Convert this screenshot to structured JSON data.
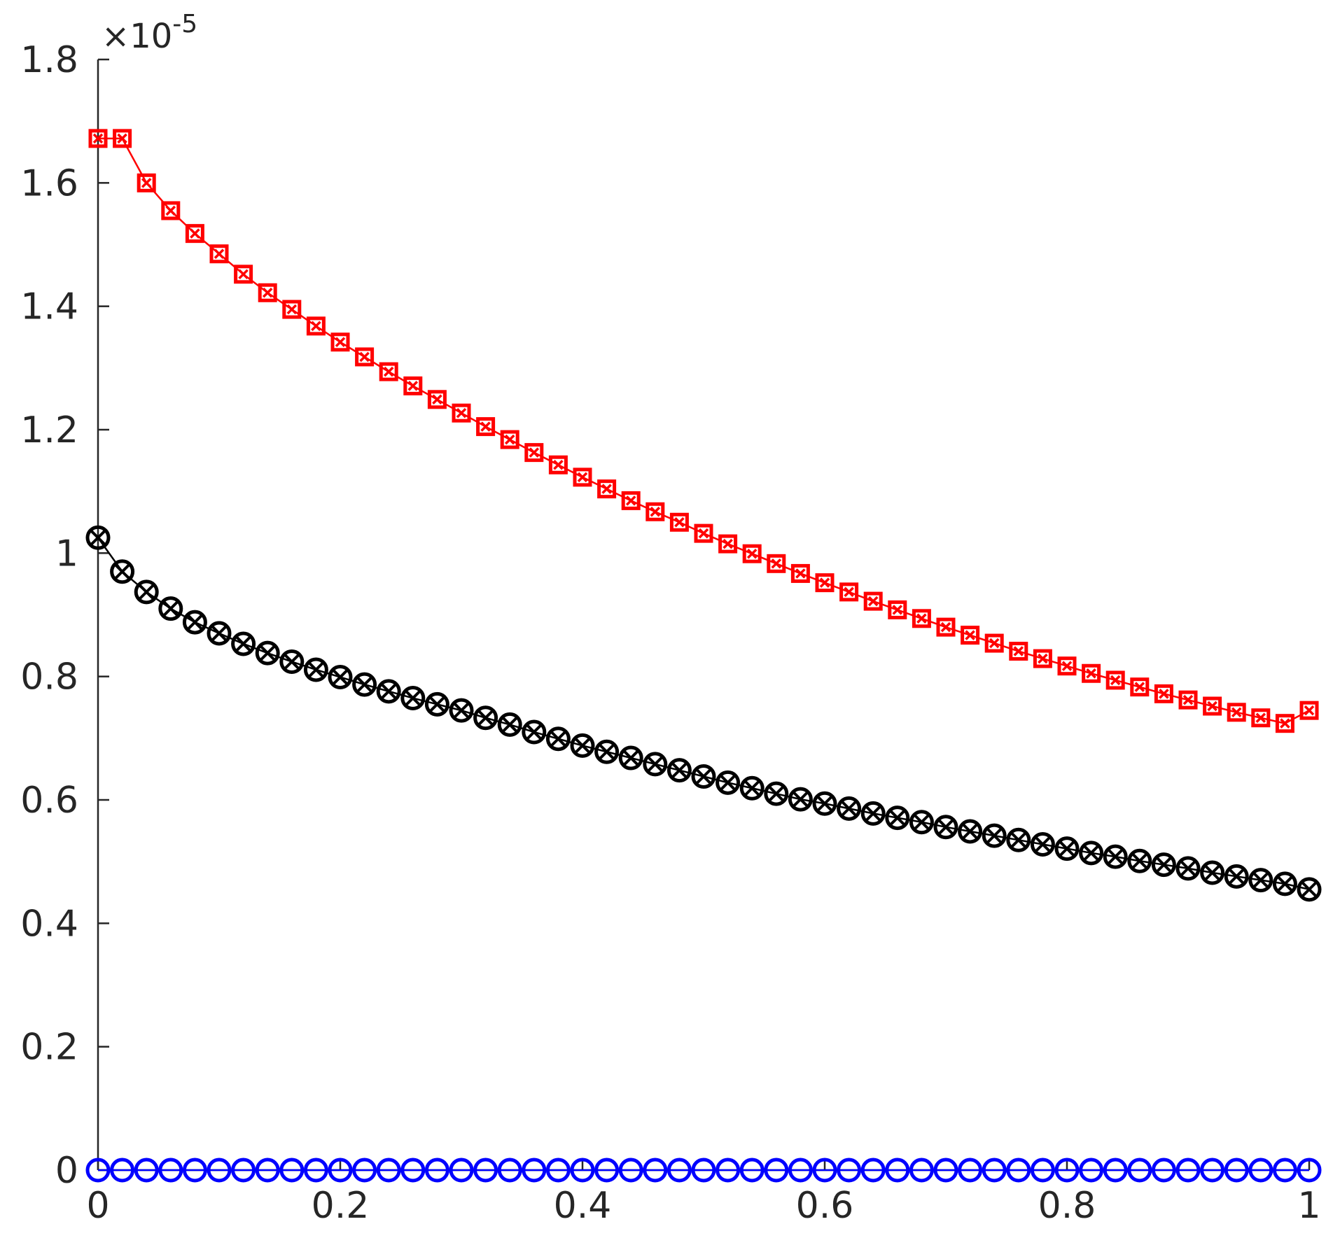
{
  "chart_data": {
    "type": "line",
    "title": "",
    "xlabel": "",
    "ylabel": "",
    "xlim": [
      0,
      1
    ],
    "ylim": [
      0,
      1.8
    ],
    "y_multiplier": {
      "base": "×10",
      "exponent": "-5"
    },
    "xticks": [
      {
        "value": 0,
        "label": "0"
      },
      {
        "value": 0.2,
        "label": "0.2"
      },
      {
        "value": 0.4,
        "label": "0.4"
      },
      {
        "value": 0.6,
        "label": "0.6"
      },
      {
        "value": 0.8,
        "label": "0.8"
      },
      {
        "value": 1,
        "label": "1"
      }
    ],
    "yticks": [
      {
        "value": 0,
        "label": "0"
      },
      {
        "value": 0.2,
        "label": "0.2"
      },
      {
        "value": 0.4,
        "label": "0.4"
      },
      {
        "value": 0.6,
        "label": "0.6"
      },
      {
        "value": 0.8,
        "label": "0.8"
      },
      {
        "value": 1,
        "label": "1"
      },
      {
        "value": 1.2,
        "label": "1.2"
      },
      {
        "value": 1.4,
        "label": "1.4"
      },
      {
        "value": 1.6,
        "label": "1.6"
      },
      {
        "value": 1.8,
        "label": "1.8"
      }
    ],
    "grid": false,
    "legend": "none",
    "x": [
      0,
      0.02,
      0.04,
      0.06,
      0.08,
      0.1,
      0.12,
      0.14,
      0.16,
      0.18,
      0.2,
      0.22,
      0.24,
      0.26,
      0.28,
      0.3,
      0.32,
      0.34,
      0.36,
      0.38,
      0.4,
      0.42,
      0.44,
      0.46,
      0.48,
      0.5,
      0.52,
      0.54,
      0.56,
      0.58,
      0.6,
      0.62,
      0.64,
      0.66,
      0.68,
      0.7,
      0.72,
      0.74,
      0.76,
      0.78,
      0.8,
      0.82,
      0.84,
      0.86,
      0.88,
      0.9,
      0.92,
      0.94,
      0.96,
      0.98,
      1
    ],
    "series": [
      {
        "marker": "square-x",
        "color": "#ff0000",
        "values": [
          1.672,
          1.672,
          1.6,
          1.555,
          1.518,
          1.485,
          1.452,
          1.422,
          1.395,
          1.368,
          1.342,
          1.318,
          1.294,
          1.271,
          1.249,
          1.227,
          1.205,
          1.184,
          1.163,
          1.143,
          1.123,
          1.104,
          1.085,
          1.067,
          1.05,
          1.032,
          1.015,
          0.999,
          0.983,
          0.967,
          0.952,
          0.937,
          0.922,
          0.908,
          0.894,
          0.88,
          0.867,
          0.854,
          0.841,
          0.829,
          0.817,
          0.805,
          0.794,
          0.783,
          0.772,
          0.762,
          0.752,
          0.742,
          0.733,
          0.724,
          0.745
        ]
      },
      {
        "marker": "circle-x",
        "color": "#000000",
        "values": [
          1.025,
          0.97,
          0.937,
          0.91,
          0.888,
          0.87,
          0.853,
          0.838,
          0.824,
          0.811,
          0.799,
          0.787,
          0.776,
          0.765,
          0.755,
          0.745,
          0.733,
          0.722,
          0.71,
          0.699,
          0.688,
          0.678,
          0.668,
          0.658,
          0.648,
          0.638,
          0.628,
          0.619,
          0.61,
          0.601,
          0.594,
          0.586,
          0.578,
          0.571,
          0.564,
          0.556,
          0.549,
          0.542,
          0.535,
          0.528,
          0.521,
          0.514,
          0.508,
          0.501,
          0.495,
          0.489,
          0.482,
          0.476,
          0.47,
          0.464,
          0.455
        ]
      },
      {
        "marker": "circle",
        "color": "#0000ff",
        "values": [
          0,
          0,
          0,
          0,
          0,
          0,
          0,
          0,
          0,
          0,
          0,
          0,
          0,
          0,
          0,
          0,
          0,
          0,
          0,
          0,
          0,
          0,
          0,
          0,
          0,
          0,
          0,
          0,
          0,
          0,
          0,
          0,
          0,
          0,
          0,
          0,
          0,
          0,
          0,
          0,
          0,
          0,
          0,
          0,
          0,
          0,
          0,
          0,
          0,
          0,
          0
        ]
      }
    ]
  }
}
